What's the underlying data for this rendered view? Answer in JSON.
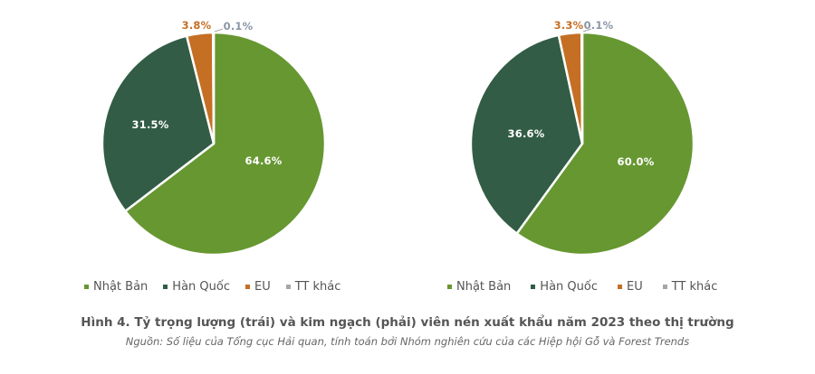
{
  "chart_data": [
    {
      "type": "pie",
      "title": "Tỷ trọng lượng (trái)",
      "categories": [
        "Nhật Bản",
        "Hàn Quốc",
        "EU",
        "TT khác"
      ],
      "values": [
        64.6,
        31.5,
        3.8,
        0.1
      ],
      "labels": [
        "64.6%",
        "31.5%",
        "3.8%",
        "0.1%"
      ],
      "colors": [
        "#679731",
        "#325c45",
        "#c56f24",
        "#a6a6a6"
      ],
      "legend_position": "bottom"
    },
    {
      "type": "pie",
      "title": "Kim ngạch (phải)",
      "categories": [
        "Nhật Bản",
        "Hàn Quốc",
        "EU",
        "TT khác"
      ],
      "values": [
        60.0,
        36.6,
        3.3,
        0.1
      ],
      "labels": [
        "60.0%",
        "36.6%",
        "3.3%",
        "0.1%"
      ],
      "colors": [
        "#679731",
        "#325c45",
        "#c56f24",
        "#a6a6a6"
      ],
      "legend_position": "bottom"
    }
  ],
  "legend": {
    "items": [
      {
        "label": "Nhật Bản",
        "color": "#679731"
      },
      {
        "label": "Hàn Quốc",
        "color": "#325c45"
      },
      {
        "label": "EU",
        "color": "#c56f24"
      },
      {
        "label": "TT khác",
        "color": "#a6a6a6"
      }
    ]
  },
  "caption": {
    "title": "Hình 4. Tỷ trọng lượng (trái) và kim ngạch (phải) viên nén xuất khẩu năm 2023 theo thị trường",
    "source": "Nguồn: Số liệu của Tổng cục Hải quan, tính toán bởi Nhóm nghiên cứu của các Hiệp hội Gỗ và Forest Trends"
  }
}
